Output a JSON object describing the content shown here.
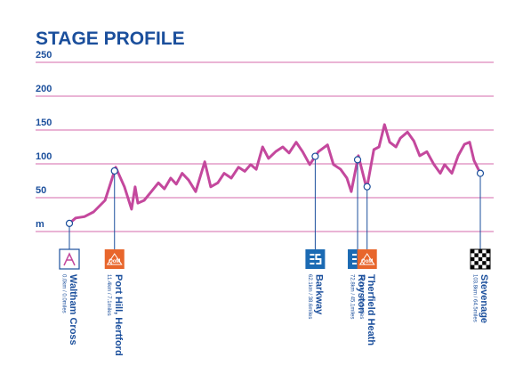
{
  "chart_data": {
    "type": "line",
    "title": "STAGE PROFILE",
    "ylim": [
      0,
      250
    ],
    "yticks": [
      {
        "value": 0,
        "label": "m"
      },
      50,
      100,
      150,
      200,
      250
    ],
    "xlim": [
      0,
      103.8
    ],
    "color": "#c4489d",
    "grid": true,
    "x": [
      0,
      1.6,
      3.8,
      6.1,
      9.0,
      11.7,
      13.9,
      15.7,
      16.6,
      17.3,
      18.9,
      20.7,
      22.5,
      24.0,
      25.6,
      27.0,
      28.5,
      30.1,
      31.9,
      34.2,
      35.7,
      37.5,
      39.1,
      40.9,
      42.7,
      44.3,
      45.8,
      47.2,
      48.8,
      50.3,
      52.1,
      53.9,
      55.5,
      57.3,
      58.9,
      60.7,
      62.9,
      65.2,
      66.7,
      68.5,
      70.1,
      71.2,
      73.0,
      75.1,
      76.9,
      78.2,
      79.6,
      80.9,
      82.5,
      83.6,
      85.4,
      87.0,
      88.5,
      90.3,
      92.1,
      93.7,
      94.8,
      96.6,
      98.2,
      99.8,
      101.1,
      102.2,
      103.8
    ],
    "values": [
      12,
      20,
      22,
      29,
      46,
      95,
      66,
      33,
      66,
      42,
      46,
      59,
      72,
      63,
      79,
      70,
      86,
      76,
      59,
      103,
      66,
      72,
      86,
      79,
      95,
      89,
      99,
      92,
      125,
      108,
      118,
      125,
      116,
      132,
      118,
      99,
      118,
      128,
      99,
      92,
      79,
      59,
      112,
      63,
      121,
      125,
      158,
      132,
      125,
      138,
      147,
      134,
      112,
      118,
      99,
      86,
      99,
      86,
      112,
      129,
      132,
      105,
      86
    ],
    "waypoints": [
      {
        "name": "Waltham Cross",
        "km": 0.0,
        "distance": "0.0km / 0.0miles",
        "icon": "start"
      },
      {
        "name": "Port Hill, Hertford",
        "km": 11.4,
        "distance": "11.4km / 7.1miles",
        "icon": "qom",
        "badge": "QoM"
      },
      {
        "name": "Barkway",
        "km": 62.1,
        "distance": "62.1km / 38.6miles",
        "icon": "sprint"
      },
      {
        "name": "Royston",
        "km": 72.8,
        "distance": "72.8km / 45.1miles",
        "icon": "sprint"
      },
      {
        "name": "Therfield Heath",
        "km": 75.2,
        "distance": "75.2km / 46.8miles",
        "icon": "qom",
        "badge": "QoM"
      },
      {
        "name": "Stevenage",
        "km": 103.8,
        "distance": "103.8km / 64.5miles",
        "icon": "finish"
      }
    ]
  }
}
